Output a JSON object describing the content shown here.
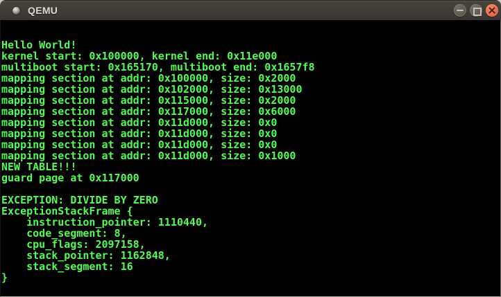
{
  "window": {
    "title": "QEMU",
    "controls": {
      "minimize_icon": "minimize-icon",
      "maximize_icon": "maximize-icon",
      "close_icon": "close-icon"
    },
    "colors": {
      "titlebar": "#403d38",
      "title_text": "#dfdbd3",
      "close_button": "#ed6a4b"
    }
  },
  "terminal": {
    "colors": {
      "foreground": "#54fb54",
      "background": "#000000"
    },
    "lines": [
      "Hello World!",
      "kernel start: 0x100000, kernel end: 0x11e000",
      "multiboot start: 0x165170, multiboot end: 0x1657f8",
      "mapping section at addr: 0x100000, size: 0x2000",
      "mapping section at addr: 0x102000, size: 0x13000",
      "mapping section at addr: 0x115000, size: 0x2000",
      "mapping section at addr: 0x117000, size: 0x6000",
      "mapping section at addr: 0x11d000, size: 0x0",
      "mapping section at addr: 0x11d000, size: 0x0",
      "mapping section at addr: 0x11d000, size: 0x0",
      "mapping section at addr: 0x11d000, size: 0x1000",
      "NEW TABLE!!!",
      "guard page at 0x117000",
      "",
      "EXCEPTION: DIVIDE BY ZERO",
      "ExceptionStackFrame {",
      "    instruction_pointer: 1110440,",
      "    code_segment: 8,",
      "    cpu_flags: 2097158,",
      "    stack_pointer: 1162848,",
      "    stack_segment: 16",
      "}"
    ]
  }
}
